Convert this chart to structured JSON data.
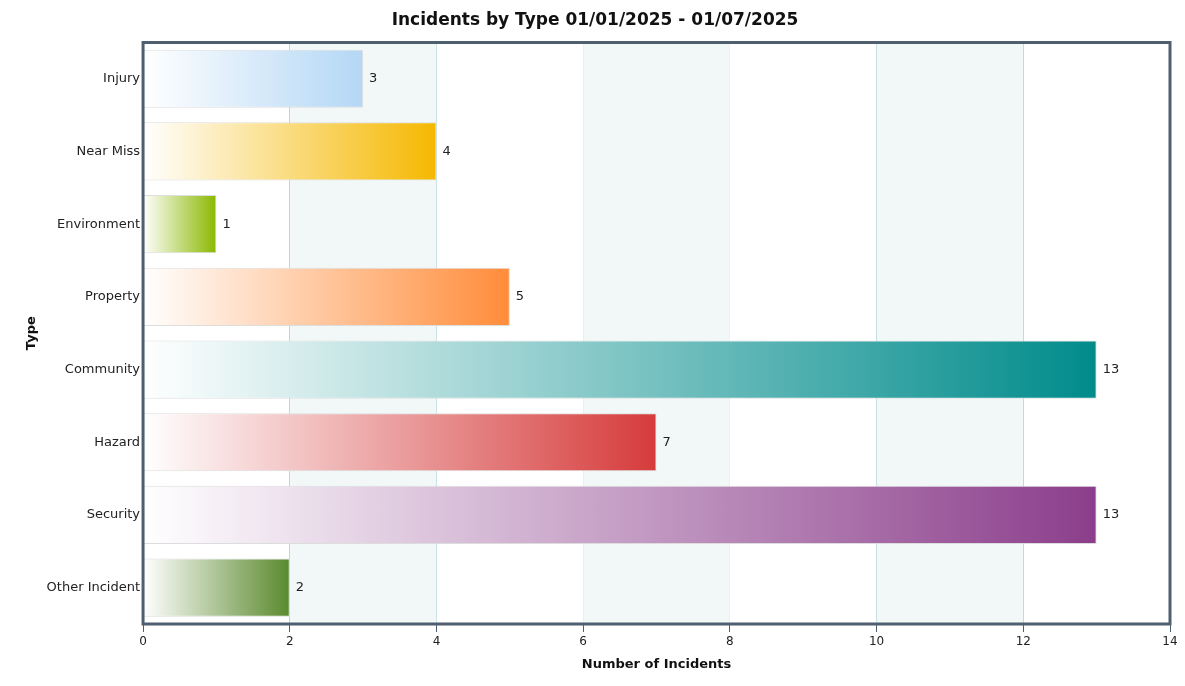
{
  "chart_data": {
    "type": "bar",
    "orientation": "horizontal",
    "title": "Incidents by Type 01/01/2025 - 01/07/2025",
    "xlabel": "Number of Incidents",
    "ylabel": "Type",
    "categories": [
      "Injury",
      "Near Miss",
      "Environment",
      "Property",
      "Community",
      "Hazard",
      "Security",
      "Other Incident"
    ],
    "values": [
      3,
      4,
      1,
      5,
      13,
      7,
      13,
      2
    ],
    "colors": [
      "#b3d7f5",
      "#f5b800",
      "#8ab800",
      "#ff8c3a",
      "#008b8b",
      "#d63b3b",
      "#8b3e8b",
      "#5a8a2e"
    ],
    "xlim": [
      0,
      14
    ],
    "xticks": [
      0,
      2,
      4,
      6,
      8,
      10,
      12,
      14
    ],
    "grid": "x",
    "data_labels": true,
    "legend": false
  }
}
